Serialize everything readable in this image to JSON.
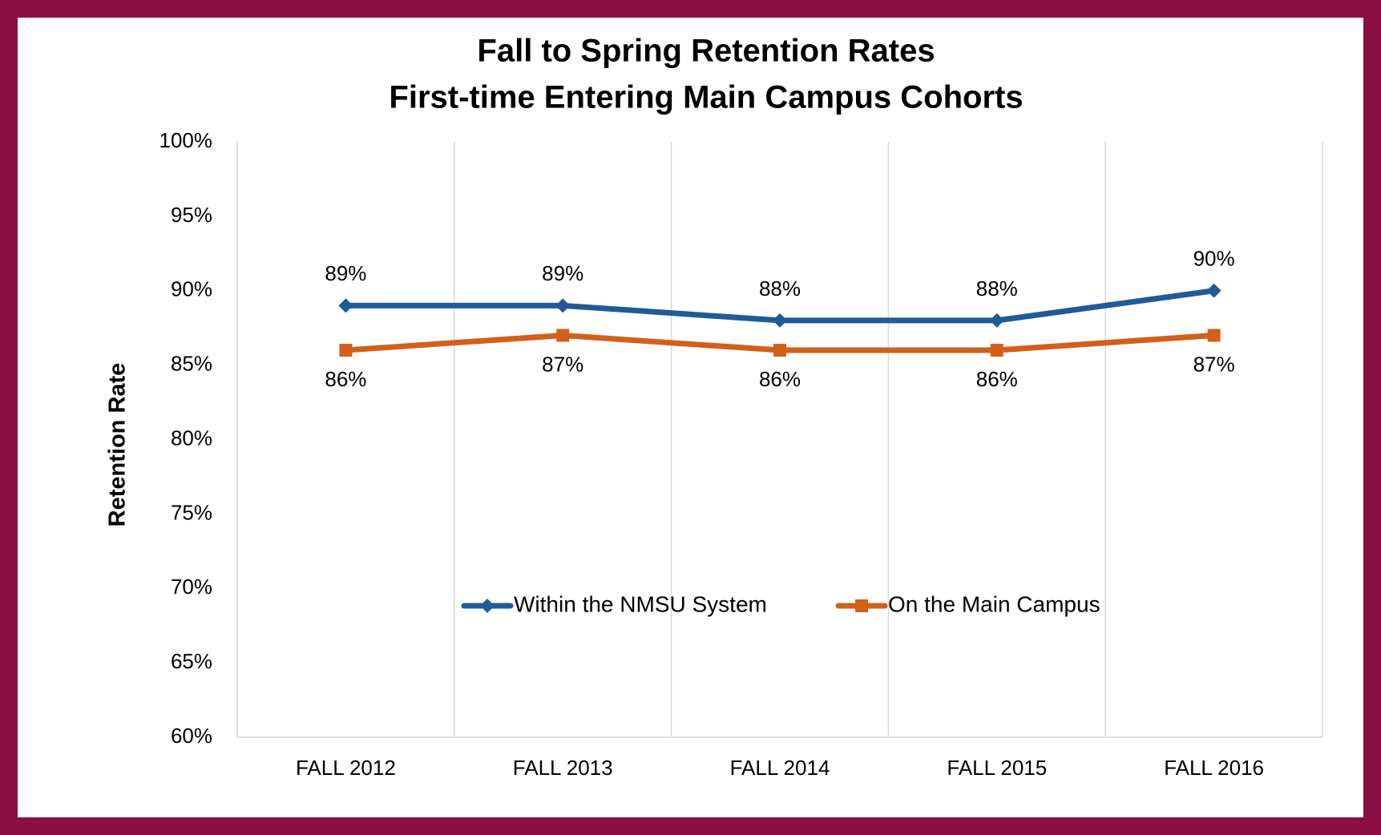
{
  "chart_data": {
    "type": "line",
    "title": [
      "Fall to Spring Retention Rates",
      "First-time Entering Main Campus Cohorts"
    ],
    "y_label": "Retention Rate",
    "categories": [
      "FALL 2012",
      "FALL 2013",
      "FALL 2014",
      "FALL 2015",
      "FALL 2016"
    ],
    "series": [
      {
        "name": "Within the NMSU System",
        "color": "#1f5a99",
        "marker": "diamond",
        "values": [
          89,
          89,
          88,
          88,
          90
        ],
        "value_labels": [
          "89%",
          "89%",
          "88%",
          "88%",
          "90%"
        ]
      },
      {
        "name": "On the Main Campus",
        "color": "#d2601a",
        "marker": "square",
        "values": [
          86,
          87,
          86,
          86,
          87
        ],
        "value_labels": [
          "86%",
          "87%",
          "86%",
          "86%",
          "87%"
        ]
      }
    ],
    "ylim": [
      60,
      100
    ],
    "yticks": [
      {
        "value": 60,
        "label": "60%"
      },
      {
        "value": 65,
        "label": "65%"
      },
      {
        "value": 70,
        "label": "70%"
      },
      {
        "value": 75,
        "label": "75%"
      },
      {
        "value": 80,
        "label": "80%"
      },
      {
        "value": 85,
        "label": "85%"
      },
      {
        "value": 90,
        "label": "90%"
      },
      {
        "value": 95,
        "label": "95%"
      },
      {
        "value": 100,
        "label": "100%"
      }
    ],
    "legend": "inside-bottom-center"
  }
}
